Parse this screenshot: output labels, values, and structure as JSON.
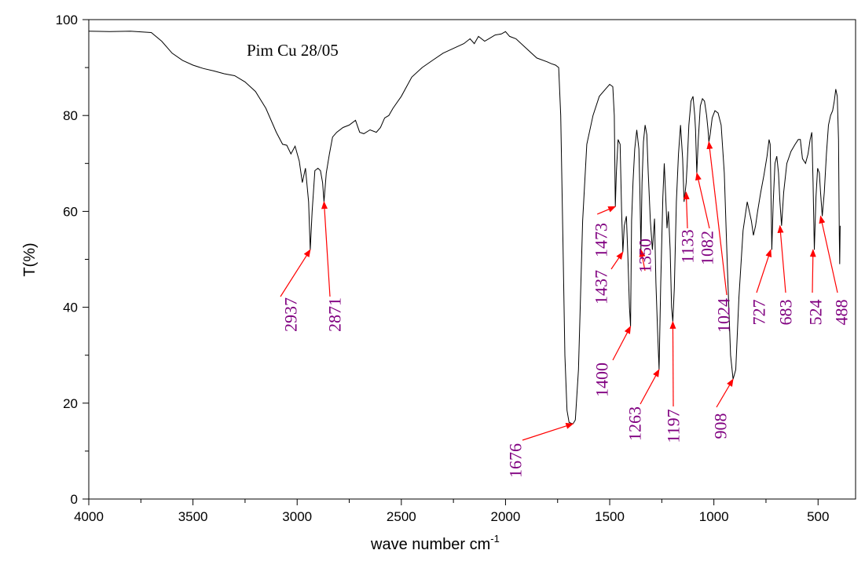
{
  "chart_data": {
    "type": "line",
    "title": "Pim Cu 28/05",
    "xlabel": "wave number cm",
    "xlabel_superscript": "-1",
    "ylabel": "T(%)",
    "xlim": [
      4000,
      320
    ],
    "ylim": [
      0,
      100
    ],
    "x_ticks": [
      "4000",
      "3500",
      "3000",
      "2500",
      "2000",
      "1500",
      "1000",
      "500"
    ],
    "y_ticks": [
      "0",
      "20",
      "40",
      "60",
      "80",
      "100"
    ],
    "grid": false,
    "line_color": "#000000",
    "annotation_color": "#800080",
    "arrow_color": "#ff0000",
    "series": [
      {
        "x": [
          4000,
          3900,
          3800,
          3700,
          3650,
          3600,
          3550,
          3500,
          3450,
          3400,
          3350,
          3300,
          3250,
          3200,
          3150,
          3100,
          3070,
          3050,
          3030,
          3010,
          2990,
          2975,
          2960,
          2945,
          2937,
          2928,
          2915,
          2900,
          2888,
          2878,
          2871,
          2860,
          2845,
          2830,
          2810,
          2780,
          2750,
          2720,
          2700,
          2680,
          2650,
          2620,
          2600,
          2580,
          2560,
          2540,
          2500,
          2450,
          2400,
          2350,
          2300,
          2250,
          2200,
          2170,
          2150,
          2130,
          2100,
          2080,
          2050,
          2020,
          2000,
          1980,
          1950,
          1900,
          1850,
          1800,
          1780,
          1760,
          1745,
          1735,
          1725,
          1715,
          1705,
          1695,
          1685,
          1676,
          1665,
          1650,
          1630,
          1610,
          1580,
          1550,
          1520,
          1500,
          1485,
          1478,
          1473,
          1468,
          1460,
          1450,
          1443,
          1437,
          1430,
          1420,
          1413,
          1405,
          1400,
          1395,
          1388,
          1380,
          1370,
          1360,
          1355,
          1350,
          1345,
          1338,
          1330,
          1322,
          1315,
          1305,
          1295,
          1285,
          1278,
          1270,
          1263,
          1255,
          1245,
          1238,
          1232,
          1225,
          1218,
          1210,
          1203,
          1197,
          1190,
          1180,
          1170,
          1160,
          1150,
          1143,
          1138,
          1133,
          1128,
          1120,
          1110,
          1100,
          1092,
          1088,
          1082,
          1075,
          1065,
          1055,
          1045,
          1035,
          1028,
          1024,
          1018,
          1008,
          995,
          980,
          965,
          950,
          935,
          920,
          908,
          895,
          880,
          860,
          840,
          820,
          810,
          800,
          790,
          775,
          760,
          745,
          735,
          730,
          727,
          722,
          715,
          707,
          698,
          690,
          683,
          675,
          665,
          650,
          630,
          610,
          595,
          585,
          575,
          560,
          548,
          538,
          530,
          524,
          518,
          510,
          502,
          494,
          488,
          480,
          470,
          460,
          450,
          440,
          430,
          422,
          415,
          408,
          402,
          398,
          396,
          394
        ],
        "y": [
          97.6,
          97.5,
          97.6,
          97.3,
          95.5,
          93,
          91.5,
          90.5,
          89.8,
          89.3,
          88.7,
          88.3,
          87,
          85,
          81.5,
          76.5,
          74,
          73.8,
          72,
          73.6,
          70.5,
          66,
          69,
          62,
          52,
          60,
          68.5,
          69,
          68.5,
          66,
          62,
          68,
          72,
          75.5,
          76.5,
          77.5,
          78,
          79,
          76.5,
          76.2,
          77,
          76.5,
          77.5,
          79.5,
          80,
          81.5,
          84,
          88,
          90,
          91.5,
          93,
          94,
          95,
          96,
          95,
          96.5,
          95.5,
          96,
          96.8,
          97,
          97.5,
          96.5,
          96,
          94,
          92,
          91.2,
          90.8,
          90.5,
          90,
          80,
          55,
          30,
          18.5,
          16,
          15.8,
          15.7,
          16.5,
          27,
          58,
          74,
          80,
          84,
          85.5,
          86.5,
          86,
          80,
          61,
          68,
          75,
          74,
          60,
          51.5,
          57,
          59,
          51,
          40,
          36,
          58,
          66,
          73,
          77,
          73,
          64,
          52,
          66,
          74.5,
          78,
          76,
          68,
          58,
          52,
          58.5,
          45,
          35,
          27,
          45,
          63,
          70,
          64,
          56.5,
          60,
          52,
          40,
          37,
          44,
          62,
          72,
          78,
          71,
          62,
          64,
          66,
          70,
          78,
          83,
          84,
          80,
          77,
          68,
          75,
          82,
          83.5,
          83,
          80,
          77,
          74.5,
          76,
          79.5,
          81,
          80.5,
          78,
          68,
          48,
          30,
          25,
          27,
          42,
          56,
          62,
          58,
          55,
          57,
          60,
          64,
          67.5,
          71.5,
          75,
          74,
          66,
          52,
          62,
          70,
          71.5,
          68,
          62,
          57,
          64,
          70,
          72.5,
          74,
          75,
          75,
          71,
          70,
          72,
          75,
          76.5,
          66,
          52,
          63,
          69,
          68,
          64,
          59,
          64,
          72,
          78,
          80,
          81,
          83,
          85.5,
          84,
          75,
          55,
          49,
          57
        ]
      }
    ],
    "peak_labels": [
      {
        "label": "2937",
        "peak_x": 2937,
        "peak_y": 52
      },
      {
        "label": "2871",
        "peak_x": 2871,
        "peak_y": 62
      },
      {
        "label": "1676",
        "peak_x": 1676,
        "peak_y": 15.7
      },
      {
        "label": "1473",
        "peak_x": 1473,
        "peak_y": 61
      },
      {
        "label": "1437",
        "peak_x": 1437,
        "peak_y": 51.5
      },
      {
        "label": "1400",
        "peak_x": 1400,
        "peak_y": 36
      },
      {
        "label": "1350",
        "peak_x": 1350,
        "peak_y": 52
      },
      {
        "label": "1263",
        "peak_x": 1263,
        "peak_y": 27
      },
      {
        "label": "1197",
        "peak_x": 1197,
        "peak_y": 37
      },
      {
        "label": "1133",
        "peak_x": 1133,
        "peak_y": 64
      },
      {
        "label": "1082",
        "peak_x": 1082,
        "peak_y": 68
      },
      {
        "label": "1024",
        "peak_x": 1024,
        "peak_y": 74.5
      },
      {
        "label": "908",
        "peak_x": 908,
        "peak_y": 25
      },
      {
        "label": "727",
        "peak_x": 727,
        "peak_y": 52
      },
      {
        "label": "683",
        "peak_x": 683,
        "peak_y": 57
      },
      {
        "label": "524",
        "peak_x": 524,
        "peak_y": 52
      },
      {
        "label": "488",
        "peak_x": 488,
        "peak_y": 59
      }
    ]
  }
}
